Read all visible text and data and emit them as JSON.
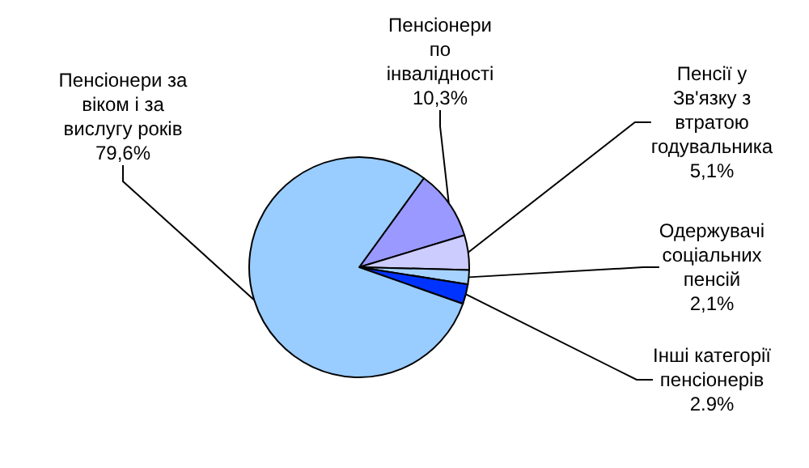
{
  "chart_data": {
    "type": "pie",
    "categories": [
      "Пенсіонери по інвалідності",
      "Пенсії у Зв'язку з втратою годувальника",
      "Одержувачі соціальних пенсій",
      "Інші категорії пенсіонерів",
      "Пенсіонери за віком і за вислугу років"
    ],
    "values": [
      10.3,
      5.1,
      2.1,
      2.9,
      79.6
    ],
    "value_labels": [
      "10,3%",
      "5,1%",
      "2,1%",
      "2.9%",
      "79,6%"
    ],
    "colors": [
      "#9999ff",
      "#ccccff",
      "#a6d2ff",
      "#0033ff",
      "#99ccff"
    ]
  }
}
